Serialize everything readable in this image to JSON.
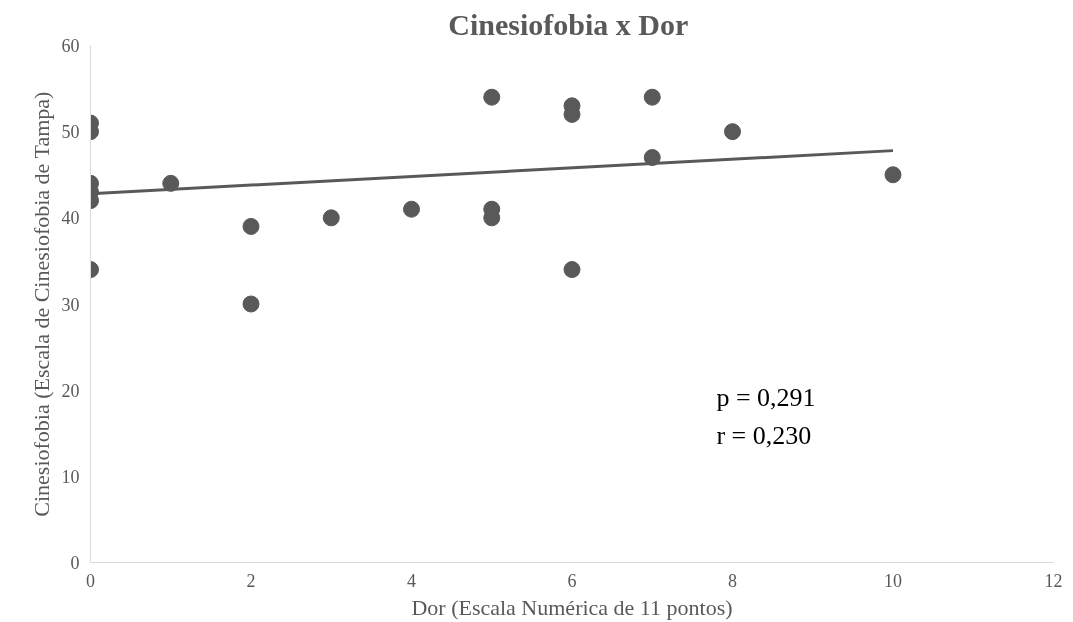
{
  "chart_data": {
    "type": "scatter",
    "title": "Cinesiofobia  x Dor",
    "xlabel": "Dor (Escala Numérica de 11 pontos)",
    "ylabel": "Cinesiofobia (Escala de Cinesiofobia de Tampa)",
    "annotations": [
      "p = 0,291",
      "r = 0,230"
    ],
    "series": [
      {
        "color": "#595959",
        "marker": "circle",
        "x": [
          0,
          0,
          0,
          0,
          0,
          0,
          1,
          2,
          2,
          3,
          4,
          5,
          5,
          5,
          6,
          6,
          6,
          7,
          7,
          8,
          10
        ],
        "values": [
          51,
          50,
          44,
          43,
          42,
          34,
          44,
          39,
          30,
          40,
          41,
          54,
          41,
          40,
          53,
          52,
          34,
          54,
          47,
          50,
          45
        ]
      },
      {
        "type": "line",
        "color": "#595959",
        "x": [
          0,
          10
        ],
        "values": [
          42.8,
          47.8
        ]
      }
    ],
    "grid": false,
    "xlim": [
      0,
      12
    ],
    "xticks": [
      0,
      2,
      4,
      6,
      8,
      10,
      12
    ],
    "ylim": [
      0,
      60
    ],
    "yticks": [
      0,
      10,
      20,
      30,
      40,
      50,
      60
    ]
  }
}
